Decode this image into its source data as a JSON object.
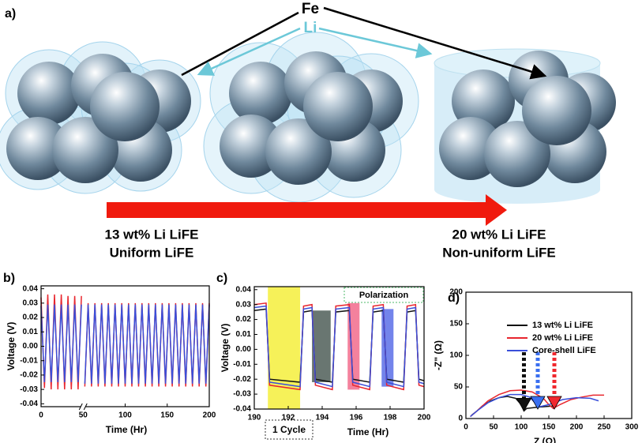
{
  "schematic": {
    "label": "a)",
    "fe": "Fe",
    "li": "Li",
    "left_caption": [
      "13 wt% Li LiFE",
      "Uniform LiFE"
    ],
    "right_caption": [
      "20 wt% Li LiFE",
      "Non-uniform LiFE"
    ]
  },
  "chart_data": [
    {
      "type": "line",
      "panel_label": "b)",
      "xlabel": "Time (Hr)",
      "ylabel": "Voltage (V)",
      "xlim": [
        0,
        200
      ],
      "xticks": [
        0,
        50,
        100,
        150,
        200
      ],
      "ylim": [
        -0.042,
        0.042
      ],
      "yticks": [
        -0.04,
        -0.03,
        -0.02,
        -0.01,
        {
          "value": 0,
          "label": "0.00"
        },
        0.01,
        0.02,
        0.03,
        0.04
      ],
      "x": [
        0,
        4,
        8,
        12,
        16,
        20,
        24,
        28,
        32,
        36,
        40,
        44,
        48,
        50,
        52,
        56,
        60,
        64,
        68,
        72,
        76,
        80,
        84,
        88,
        92,
        96,
        100,
        104,
        108,
        112,
        116,
        120,
        124,
        128,
        132,
        136,
        140,
        144,
        148,
        152,
        156,
        160,
        164,
        168,
        172,
        176,
        180,
        184,
        188,
        192,
        196,
        200
      ],
      "series": [
        {
          "color": "#e8262e",
          "values": [
            0.034,
            -0.029,
            0.036,
            -0.03,
            0.036,
            -0.03,
            0.036,
            -0.03,
            0.035,
            -0.03,
            0.035,
            -0.03,
            0.035,
            null,
            -0.028,
            0.03,
            -0.028,
            0.03,
            -0.028,
            0.03,
            -0.028,
            0.03,
            -0.028,
            0.03,
            -0.028,
            0.03,
            -0.028,
            0.03,
            -0.028,
            0.03,
            -0.028,
            0.03,
            -0.028,
            0.03,
            -0.028,
            0.03,
            -0.028,
            0.03,
            -0.028,
            0.03,
            -0.028,
            0.03,
            -0.028,
            0.03,
            -0.028,
            0.03,
            -0.028,
            0.03,
            -0.028,
            0.03,
            -0.028,
            0.03
          ]
        },
        {
          "color": "#3a4fd9",
          "values": [
            0.028,
            -0.025,
            0.029,
            -0.025,
            0.029,
            -0.025,
            0.029,
            -0.025,
            0.029,
            -0.025,
            0.029,
            -0.025,
            0.029,
            null,
            -0.026,
            0.029,
            -0.026,
            0.029,
            -0.026,
            0.029,
            -0.026,
            0.029,
            -0.026,
            0.029,
            -0.026,
            0.029,
            -0.026,
            0.029,
            -0.026,
            0.029,
            -0.026,
            0.029,
            -0.026,
            0.029,
            -0.026,
            0.029,
            -0.026,
            0.029,
            -0.026,
            0.029,
            -0.026,
            0.029,
            -0.026,
            0.029,
            -0.026,
            0.029,
            -0.026,
            0.029,
            -0.026,
            0.029,
            -0.026,
            0.029
          ]
        }
      ]
    },
    {
      "type": "line",
      "panel_label": "c)",
      "xlabel": "Time (Hr)",
      "ylabel": "Voltage (V)",
      "annotations": [
        "1 Cycle",
        "Polarization"
      ],
      "xlim": [
        190,
        200
      ],
      "xticks": [
        190,
        192,
        194,
        196,
        198,
        200
      ],
      "ylim": [
        -0.04,
        0.042
      ],
      "yticks": [
        -0.04,
        -0.03,
        -0.02,
        -0.01,
        {
          "value": 0,
          "label": "0.00"
        },
        0.01,
        0.02,
        0.03,
        0.04
      ],
      "regions": [
        {
          "x": [
            190.8,
            192.7
          ],
          "y": [
            -0.04,
            0.042
          ],
          "color": "#f4ee3c"
        },
        {
          "x": [
            193.4,
            194.5
          ],
          "y": [
            -0.022,
            0.026
          ],
          "color": "#4f5e58"
        },
        {
          "x": [
            195.5,
            196.2
          ],
          "y": [
            -0.027,
            0.031
          ],
          "color": "#f26b8c"
        },
        {
          "x": [
            197.5,
            198.2
          ],
          "y": [
            -0.025,
            0.027
          ],
          "color": "#5a6ee8"
        }
      ],
      "x": [
        190,
        190.7,
        190.9,
        192.7,
        192.9,
        193.4,
        193.6,
        194.6,
        194.8,
        195.6,
        195.8,
        196.8,
        197.0,
        197.6,
        197.8,
        198.8,
        199.0,
        199.5,
        199.7,
        200
      ],
      "series": [
        {
          "color": "#111111",
          "values": [
            0.026,
            0.027,
            -0.02,
            -0.022,
            0.025,
            0.026,
            -0.02,
            -0.022,
            0.025,
            0.026,
            -0.02,
            -0.022,
            0.025,
            0.026,
            -0.02,
            -0.022,
            0.025,
            0.026,
            -0.02,
            -0.021
          ]
        },
        {
          "color": "#e8262e",
          "values": [
            0.03,
            0.031,
            -0.024,
            -0.027,
            0.029,
            0.03,
            -0.024,
            -0.027,
            0.029,
            0.03,
            -0.024,
            -0.027,
            0.029,
            0.03,
            -0.024,
            -0.027,
            0.029,
            0.03,
            -0.024,
            -0.025
          ]
        },
        {
          "color": "#3a4fd9",
          "values": [
            0.028,
            0.029,
            -0.022,
            -0.025,
            0.027,
            0.028,
            -0.022,
            -0.025,
            0.027,
            0.028,
            -0.022,
            -0.025,
            0.027,
            0.028,
            -0.022,
            -0.025,
            0.027,
            0.028,
            -0.022,
            -0.023
          ]
        }
      ]
    },
    {
      "type": "line",
      "panel_label": "d)",
      "xlabel": "Z (Ω)",
      "ylabel": "-Z\" (Ω)",
      "xlim": [
        0,
        300
      ],
      "xticks": [
        0,
        50,
        100,
        150,
        200,
        250,
        300
      ],
      "ylim": [
        0,
        200
      ],
      "yticks": [
        0,
        50,
        100,
        150,
        200
      ],
      "legend": "upper-right",
      "series": [
        {
          "name": "13 wt% Li LiFE",
          "color": "#111111",
          "x": [
            10,
            20,
            30,
            45,
            60,
            75,
            90,
            100,
            105,
            110,
            130,
            160
          ],
          "values": [
            5,
            12,
            20,
            28,
            33,
            35,
            32,
            22,
            12,
            16,
            18,
            20
          ]
        },
        {
          "name": "20 wt% Li LiFE",
          "color": "#e8262e",
          "x": [
            8,
            20,
            40,
            60,
            80,
            100,
            120,
            140,
            150,
            158,
            170,
            190,
            210,
            230,
            250
          ],
          "values": [
            3,
            12,
            28,
            38,
            44,
            45,
            42,
            32,
            22,
            16,
            22,
            30,
            34,
            37,
            37
          ]
        },
        {
          "name": "Core-shell LiFE",
          "color": "#3a4fd9",
          "x": [
            8,
            20,
            40,
            60,
            80,
            100,
            115,
            125,
            130,
            150,
            175,
            200,
            225,
            240
          ],
          "values": [
            3,
            12,
            25,
            33,
            38,
            38,
            34,
            25,
            18,
            22,
            30,
            33,
            32,
            28
          ]
        }
      ],
      "arrows": [
        {
          "x": 105,
          "y": [
            105,
            12
          ],
          "color": "#111111"
        },
        {
          "x": 130,
          "y": [
            105,
            15
          ],
          "color": "#3a6ff0"
        },
        {
          "x": 160,
          "y": [
            105,
            15
          ],
          "color": "#f0282e"
        }
      ]
    }
  ]
}
